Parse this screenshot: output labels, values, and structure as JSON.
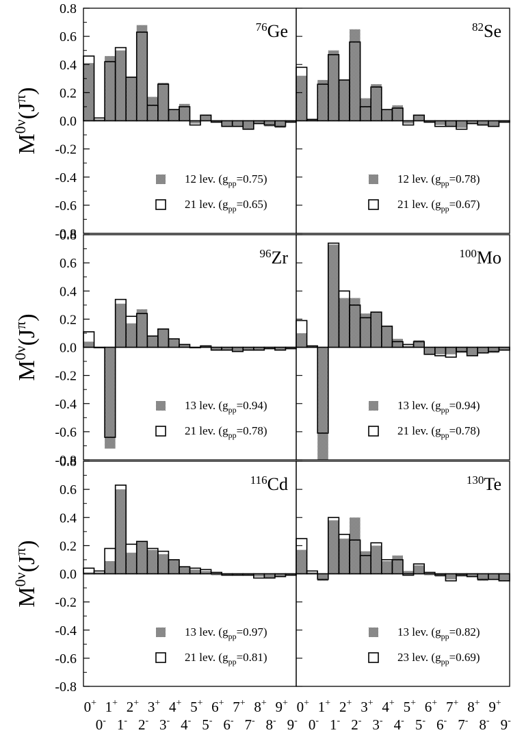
{
  "figure": {
    "ylabel": {
      "base": "M",
      "sup1": "0ν",
      "paren_open": "(J",
      "sup2": "π",
      "paren_close": ")"
    },
    "yticks": [
      "0.8",
      "0.6",
      "0.4",
      "0.2",
      "0.0",
      "-0.2",
      "-0.4",
      "-0.6",
      "-0.8"
    ],
    "xtick_top": [
      "0",
      "1",
      "2",
      "3",
      "4",
      "5",
      "6",
      "7",
      "8",
      "9"
    ],
    "xtick_top_sign": "+",
    "xtick_bottom": [
      "0",
      "1",
      "2",
      "3",
      "4",
      "5",
      "6",
      "7",
      "8",
      "9"
    ],
    "xtick_bottom_sign": "-",
    "legend_lev_word": "lev.",
    "legend_g": "(g",
    "legend_pp": "pp",
    "legend_eq": "=",
    "colors": {
      "bar_fill": "#8c8c8c",
      "outline": "#000000",
      "background": "#ffffff"
    }
  },
  "chart_data": [
    {
      "type": "bar",
      "nucleus": {
        "mass": "76",
        "symbol": "Ge"
      },
      "ylim": [
        -0.8,
        0.8
      ],
      "categories": [
        "0+",
        "0-",
        "1+",
        "1-",
        "2+",
        "2-",
        "3+",
        "3-",
        "4+",
        "4-",
        "5+",
        "5-",
        "6+",
        "6-",
        "7+",
        "7-",
        "8+",
        "8-",
        "9+",
        "9-"
      ],
      "series": [
        {
          "name": "shaded",
          "values": [
            0.41,
            0.01,
            0.46,
            0.5,
            0.31,
            0.68,
            0.17,
            0.27,
            0.08,
            0.12,
            -0.02,
            0.04,
            -0.01,
            -0.04,
            -0.04,
            -0.06,
            -0.02,
            -0.04,
            -0.05,
            -0.01
          ]
        },
        {
          "name": "open",
          "values": [
            0.46,
            0.02,
            0.42,
            0.52,
            0.31,
            0.63,
            0.11,
            0.26,
            0.08,
            0.1,
            -0.03,
            0.04,
            -0.01,
            -0.04,
            -0.04,
            -0.06,
            -0.02,
            -0.03,
            -0.04,
            -0.01
          ]
        }
      ],
      "legend": [
        {
          "levels": "12",
          "gpp": "0.75",
          "marker": "shaded"
        },
        {
          "levels": "21",
          "gpp": "0.65",
          "marker": "open"
        }
      ]
    },
    {
      "type": "bar",
      "nucleus": {
        "mass": "82",
        "symbol": "Se"
      },
      "ylim": [
        -0.8,
        0.8
      ],
      "categories": [
        "0+",
        "0-",
        "1+",
        "1-",
        "2+",
        "2-",
        "3+",
        "3-",
        "4+",
        "4-",
        "5+",
        "5-",
        "6+",
        "6-",
        "7+",
        "7-",
        "8+",
        "8-",
        "9+",
        "9-"
      ],
      "series": [
        {
          "name": "shaded",
          "values": [
            0.32,
            0.01,
            0.29,
            0.5,
            0.29,
            0.65,
            0.16,
            0.26,
            0.08,
            0.11,
            -0.02,
            0.04,
            -0.01,
            -0.03,
            -0.04,
            -0.05,
            -0.02,
            -0.03,
            -0.04,
            -0.01
          ]
        },
        {
          "name": "open",
          "values": [
            0.38,
            0.01,
            0.26,
            0.47,
            0.29,
            0.56,
            0.1,
            0.24,
            0.08,
            0.09,
            -0.03,
            0.04,
            -0.01,
            -0.04,
            -0.04,
            -0.06,
            -0.02,
            -0.03,
            -0.04,
            -0.01
          ]
        }
      ],
      "legend": [
        {
          "levels": "12",
          "gpp": "0.78",
          "marker": "shaded"
        },
        {
          "levels": "21",
          "gpp": "0.67",
          "marker": "open"
        }
      ]
    },
    {
      "type": "bar",
      "nucleus": {
        "mass": "96",
        "symbol": "Zr"
      },
      "ylim": [
        -0.8,
        0.8
      ],
      "categories": [
        "0+",
        "0-",
        "1+",
        "1-",
        "2+",
        "2-",
        "3+",
        "3-",
        "4+",
        "4-",
        "5+",
        "5-",
        "6+",
        "6-",
        "7+",
        "7-",
        "8+",
        "8-",
        "9+",
        "9-"
      ],
      "series": [
        {
          "name": "shaded",
          "values": [
            0.04,
            0.0,
            -0.72,
            0.31,
            0.17,
            0.27,
            0.08,
            0.13,
            0.06,
            0.02,
            0.0,
            0.01,
            -0.02,
            -0.02,
            -0.03,
            -0.02,
            -0.02,
            -0.01,
            -0.02,
            -0.01
          ]
        },
        {
          "name": "open",
          "values": [
            0.11,
            0.0,
            -0.64,
            0.34,
            0.22,
            0.24,
            0.08,
            0.13,
            0.06,
            0.02,
            0.0,
            0.01,
            -0.02,
            -0.02,
            -0.03,
            -0.02,
            -0.02,
            -0.01,
            -0.02,
            -0.01
          ]
        }
      ],
      "legend": [
        {
          "levels": "13",
          "gpp": "0.94",
          "marker": "shaded"
        },
        {
          "levels": "21",
          "gpp": "0.78",
          "marker": "open"
        }
      ]
    },
    {
      "type": "bar",
      "nucleus": {
        "mass": "100",
        "symbol": "Mo"
      },
      "ylim": [
        -0.8,
        0.8
      ],
      "categories": [
        "0+",
        "0-",
        "1+",
        "1-",
        "2+",
        "2-",
        "3+",
        "3-",
        "4+",
        "4-",
        "5+",
        "5-",
        "6+",
        "6-",
        "7+",
        "7-",
        "8+",
        "8-",
        "9+",
        "9-"
      ],
      "series": [
        {
          "name": "shaded",
          "values": [
            0.1,
            0.01,
            -0.8,
            0.73,
            0.35,
            0.35,
            0.24,
            0.25,
            0.15,
            0.06,
            0.01,
            0.05,
            -0.05,
            -0.05,
            -0.05,
            -0.04,
            -0.06,
            -0.04,
            -0.04,
            -0.02
          ]
        },
        {
          "name": "open",
          "values": [
            0.19,
            0.01,
            -0.61,
            0.74,
            0.4,
            0.3,
            0.21,
            0.25,
            0.15,
            0.04,
            0.02,
            0.04,
            -0.05,
            -0.06,
            -0.07,
            -0.03,
            -0.06,
            -0.04,
            -0.03,
            -0.02
          ]
        }
      ],
      "legend": [
        {
          "levels": "13",
          "gpp": "0.94",
          "marker": "shaded"
        },
        {
          "levels": "21",
          "gpp": "0.78",
          "marker": "open"
        }
      ]
    },
    {
      "type": "bar",
      "nucleus": {
        "mass": "116",
        "symbol": "Cd"
      },
      "ylim": [
        -0.8,
        0.8
      ],
      "categories": [
        "0+",
        "0-",
        "1+",
        "1-",
        "2+",
        "2-",
        "3+",
        "3-",
        "4+",
        "4-",
        "5+",
        "5-",
        "6+",
        "6-",
        "7+",
        "7-",
        "8+",
        "8-",
        "9+",
        "9-"
      ],
      "series": [
        {
          "name": "shaded",
          "values": [
            0.01,
            0.01,
            0.09,
            0.6,
            0.15,
            0.23,
            0.17,
            0.14,
            0.1,
            0.05,
            0.03,
            0.02,
            -0.01,
            -0.01,
            -0.01,
            -0.01,
            -0.02,
            -0.03,
            -0.02,
            -0.01
          ]
        },
        {
          "name": "open",
          "values": [
            0.04,
            0.02,
            0.18,
            0.63,
            0.21,
            0.23,
            0.18,
            0.16,
            0.1,
            0.05,
            0.04,
            0.03,
            0.01,
            -0.01,
            -0.01,
            -0.01,
            -0.03,
            -0.03,
            -0.02,
            -0.01
          ]
        }
      ],
      "legend": [
        {
          "levels": "13",
          "gpp": "0.97",
          "marker": "shaded"
        },
        {
          "levels": "21",
          "gpp": "0.81",
          "marker": "open"
        }
      ]
    },
    {
      "type": "bar",
      "nucleus": {
        "mass": "130",
        "symbol": "Te"
      },
      "ylim": [
        -0.8,
        0.8
      ],
      "categories": [
        "0+",
        "0-",
        "1+",
        "1-",
        "2+",
        "2-",
        "3+",
        "3-",
        "4+",
        "4-",
        "5+",
        "5-",
        "6+",
        "6-",
        "7+",
        "7-",
        "8+",
        "8-",
        "9+",
        "9-"
      ],
      "series": [
        {
          "name": "shaded",
          "values": [
            0.17,
            0.01,
            -0.05,
            0.38,
            0.25,
            0.4,
            0.16,
            0.2,
            0.09,
            0.13,
            0.02,
            0.06,
            -0.01,
            -0.02,
            -0.04,
            -0.02,
            -0.02,
            -0.05,
            -0.04,
            -0.05
          ]
        },
        {
          "name": "open",
          "values": [
            0.25,
            0.02,
            -0.04,
            0.4,
            0.28,
            0.24,
            0.13,
            0.22,
            0.1,
            0.1,
            -0.01,
            0.07,
            0.01,
            -0.01,
            -0.05,
            -0.01,
            -0.02,
            -0.04,
            -0.04,
            -0.05
          ]
        }
      ],
      "legend": [
        {
          "levels": "13",
          "gpp": "0.82",
          "marker": "shaded"
        },
        {
          "levels": "23",
          "gpp": "0.69",
          "marker": "open"
        }
      ]
    }
  ]
}
